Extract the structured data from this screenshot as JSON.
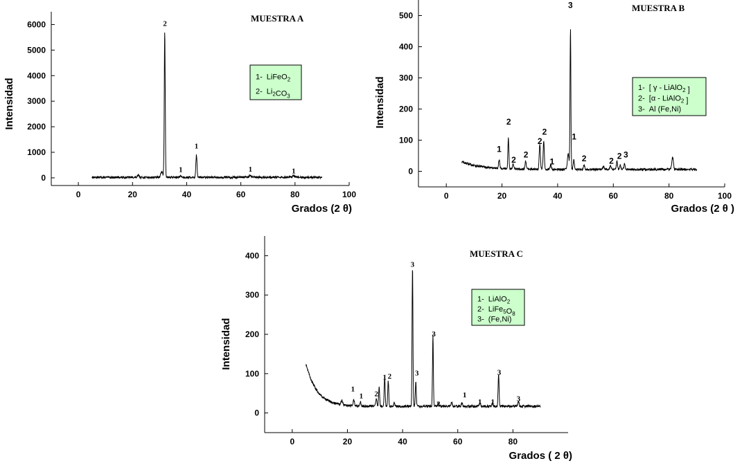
{
  "chart_data": [
    {
      "type": "line",
      "title": "MUESTRA A",
      "xlabel": "Grados  (2 θ)",
      "ylabel": "Intensidad",
      "xlim": [
        -10,
        100
      ],
      "ylim": [
        -300,
        6500
      ],
      "xticks": [
        0,
        20,
        40,
        60,
        80,
        100
      ],
      "yticks": [
        0,
        1000,
        2000,
        3000,
        4000,
        5000,
        6000
      ],
      "baseline": 20,
      "x_range": [
        5,
        90
      ],
      "peaks": [
        {
          "x": 22.2,
          "y": 80,
          "w": 0.4
        },
        {
          "x": 30.8,
          "y": 200,
          "w": 0.6
        },
        {
          "x": 31.9,
          "y": 5700,
          "w": 0.25
        },
        {
          "x": 37.8,
          "y": 60,
          "w": 0.4
        },
        {
          "x": 43.6,
          "y": 880,
          "w": 0.3
        },
        {
          "x": 63.5,
          "y": 70,
          "w": 0.5
        },
        {
          "x": 79.5,
          "y": 60,
          "w": 0.5
        }
      ],
      "peak_labels": [
        {
          "text": "2",
          "x": 32.0,
          "y": 5950
        },
        {
          "text": "1",
          "x": 43.6,
          "y": 1150
        },
        {
          "text": "1",
          "x": 37.8,
          "y": 230
        },
        {
          "text": "1",
          "x": 63.5,
          "y": 240
        },
        {
          "text": "1",
          "x": 79.5,
          "y": 170
        }
      ],
      "legend": {
        "position": "top-right",
        "lines": [
          {
            "n": "1-",
            "formula": [
              {
                "t": "LiFeO"
              },
              {
                "t": "2",
                "sub": true
              }
            ]
          },
          {
            "n": "2-",
            "formula": [
              {
                "t": "Li"
              },
              {
                "t": "2",
                "sub": true
              },
              {
                "t": "CO"
              },
              {
                "t": "3",
                "sub": true
              }
            ]
          }
        ]
      }
    },
    {
      "type": "line",
      "title": "MUESTRA B",
      "xlabel": "Grados  (2 θ )",
      "ylabel": "Intensidad",
      "xlim": [
        -10,
        100
      ],
      "ylim": [
        -50,
        550
      ],
      "xticks": [
        0,
        20,
        40,
        60,
        80,
        100
      ],
      "yticks": [
        0,
        100,
        200,
        300,
        400,
        500
      ],
      "baseline": 3,
      "x_range": [
        5.5,
        90
      ],
      "hump": {
        "amp": 25,
        "decay": 7
      },
      "peaks": [
        {
          "x": 19.0,
          "y": 28,
          "w": 0.3
        },
        {
          "x": 22.3,
          "y": 100,
          "w": 0.25
        },
        {
          "x": 24.0,
          "y": 15,
          "w": 0.3
        },
        {
          "x": 28.5,
          "y": 25,
          "w": 0.3
        },
        {
          "x": 33.6,
          "y": 80,
          "w": 0.3
        },
        {
          "x": 35.0,
          "y": 90,
          "w": 0.3
        },
        {
          "x": 37.5,
          "y": 15,
          "w": 0.3
        },
        {
          "x": 43.8,
          "y": 50,
          "w": 0.4
        },
        {
          "x": 44.6,
          "y": 455,
          "w": 0.22
        },
        {
          "x": 45.8,
          "y": 30,
          "w": 0.3
        },
        {
          "x": 49.5,
          "y": 15,
          "w": 0.3
        },
        {
          "x": 56.5,
          "y": 10,
          "w": 0.4
        },
        {
          "x": 59.0,
          "y": 12,
          "w": 0.4
        },
        {
          "x": 61.3,
          "y": 25,
          "w": 0.3
        },
        {
          "x": 62.5,
          "y": 15,
          "w": 0.3
        },
        {
          "x": 64.0,
          "y": 18,
          "w": 0.3
        },
        {
          "x": 81.3,
          "y": 38,
          "w": 0.4
        }
      ],
      "peak_labels": [
        {
          "text": "3",
          "x": 44.6,
          "y": 525
        },
        {
          "text": "2",
          "x": 22.4,
          "y": 150
        },
        {
          "text": "1",
          "x": 19.0,
          "y": 62
        },
        {
          "text": "2",
          "x": 24.2,
          "y": 28
        },
        {
          "text": "2",
          "x": 28.6,
          "y": 45
        },
        {
          "text": "2",
          "x": 33.6,
          "y": 88
        },
        {
          "text": "2",
          "x": 35.3,
          "y": 118
        },
        {
          "text": "1",
          "x": 38.0,
          "y": 22
        },
        {
          "text": "1",
          "x": 45.9,
          "y": 102
        },
        {
          "text": "2",
          "x": 49.5,
          "y": 32
        },
        {
          "text": "2",
          "x": 59.3,
          "y": 25
        },
        {
          "text": "2",
          "x": 62.2,
          "y": 40
        },
        {
          "text": "3",
          "x": 64.5,
          "y": 45
        }
      ],
      "legend": {
        "position": "top-right",
        "lines": [
          {
            "n": "1-",
            "formula": [
              {
                "t": "[ γ - LiAlO"
              },
              {
                "t": "2",
                "sub": true
              },
              {
                "t": " ]"
              }
            ]
          },
          {
            "n": "2-",
            "formula": [
              {
                "t": "[α - LiAlO"
              },
              {
                "t": "2",
                "sub": true
              },
              {
                "t": " ]"
              }
            ]
          },
          {
            "n": "3-",
            "formula": [
              {
                "t": "Al (Fe,Ni)"
              }
            ]
          }
        ]
      }
    },
    {
      "type": "line",
      "title": "MUESTRA C",
      "xlabel": "Grados  ( 2 θ)",
      "ylabel": "Intensidad",
      "xlim": [
        -10,
        100
      ],
      "ylim": [
        -50,
        450
      ],
      "xticks": [
        0,
        20,
        40,
        60,
        80
      ],
      "yticks": [
        0,
        100,
        200,
        300,
        400
      ],
      "baseline": 4,
      "x_range": [
        5,
        90
      ],
      "hump": {
        "amp": 108,
        "decay": 4
      },
      "peaks": [
        {
          "x": 18.0,
          "y": 10,
          "w": 0.4
        },
        {
          "x": 22.3,
          "y": 15,
          "w": 0.3
        },
        {
          "x": 24.7,
          "y": 10,
          "w": 0.3
        },
        {
          "x": 30.5,
          "y": 20,
          "w": 0.3
        },
        {
          "x": 31.5,
          "y": 50,
          "w": 0.25
        },
        {
          "x": 33.5,
          "y": 75,
          "w": 0.25
        },
        {
          "x": 34.8,
          "y": 65,
          "w": 0.25
        },
        {
          "x": 37.0,
          "y": 10,
          "w": 0.3
        },
        {
          "x": 43.6,
          "y": 355,
          "w": 0.22
        },
        {
          "x": 44.8,
          "y": 60,
          "w": 0.25
        },
        {
          "x": 51.0,
          "y": 180,
          "w": 0.22
        },
        {
          "x": 52.8,
          "y": 8,
          "w": 0.3
        },
        {
          "x": 57.8,
          "y": 10,
          "w": 0.3
        },
        {
          "x": 61.5,
          "y": 8,
          "w": 0.3
        },
        {
          "x": 68.0,
          "y": 10,
          "w": 0.3
        },
        {
          "x": 72.5,
          "y": 8,
          "w": 0.3
        },
        {
          "x": 74.8,
          "y": 82,
          "w": 0.25
        },
        {
          "x": 82.0,
          "y": 12,
          "w": 0.3
        }
      ],
      "peak_labels": [
        {
          "text": "3",
          "x": 43.6,
          "y": 372
        },
        {
          "text": "3",
          "x": 51.3,
          "y": 195
        },
        {
          "text": "3",
          "x": 45.2,
          "y": 95
        },
        {
          "text": "3",
          "x": 75.0,
          "y": 97
        },
        {
          "text": "3",
          "x": 82.0,
          "y": 30
        },
        {
          "text": "1",
          "x": 22.0,
          "y": 55
        },
        {
          "text": "1",
          "x": 25.0,
          "y": 37
        },
        {
          "text": "2",
          "x": 30.5,
          "y": 42
        },
        {
          "text": "1",
          "x": 33.5,
          "y": 85
        },
        {
          "text": "2",
          "x": 35.3,
          "y": 87
        },
        {
          "text": "2",
          "x": 53.0,
          "y": 17
        },
        {
          "text": "1",
          "x": 62.5,
          "y": 40
        },
        {
          "text": "1",
          "x": 68.0,
          "y": 22
        },
        {
          "text": "1",
          "x": 72.7,
          "y": 22
        }
      ],
      "legend": {
        "position": "top-right",
        "lines": [
          {
            "n": "1-",
            "formula": [
              {
                "t": "LiAlO"
              },
              {
                "t": "2",
                "sub": true
              }
            ]
          },
          {
            "n": "2-",
            "formula": [
              {
                "t": "LiFe"
              },
              {
                "t": "5",
                "sub": true
              },
              {
                "t": "O"
              },
              {
                "t": "8",
                "sub": true
              }
            ]
          },
          {
            "n": "3-",
            "formula": [
              {
                "t": "(Fe,Ni)"
              }
            ]
          }
        ]
      }
    }
  ]
}
